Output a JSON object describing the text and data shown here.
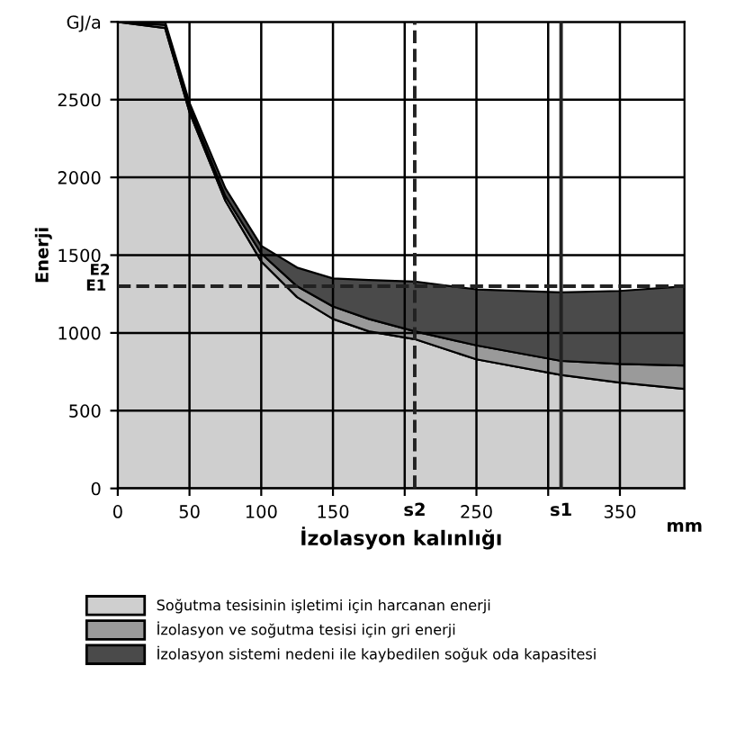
{
  "chart_data": {
    "type": "area",
    "stacked": true,
    "xlabel": "İzolasyon kalınlığı",
    "ylabel": "Enerji",
    "x": [
      0,
      33,
      50,
      75,
      100,
      125,
      150,
      175,
      207,
      250,
      309,
      350,
      395
    ],
    "series": [
      {
        "name": "Soğutma tesisinin işletimi için harcanan enerji",
        "color": "#cfcfcf",
        "values": [
          3000,
          2960,
          2420,
          1850,
          1460,
          1230,
          1090,
          1010,
          960,
          830,
          730,
          680,
          640
        ]
      },
      {
        "name": "İzolasyon ve soğutma tesisi için gri enerji",
        "color": "#9a9a9a",
        "values": [
          0,
          20,
          30,
          30,
          50,
          70,
          80,
          80,
          50,
          90,
          90,
          120,
          150
        ]
      },
      {
        "name": "İzolasyon sistemi nedeni ile kaybedilen soğuk oda kapasitesi",
        "color": "#4a4a4a",
        "values": [
          0,
          20,
          30,
          50,
          50,
          120,
          180,
          250,
          320,
          360,
          440,
          470,
          510
        ]
      }
    ],
    "xlim": [
      0,
      395
    ],
    "ylim": [
      0,
      3000
    ],
    "xticks": [
      0,
      50,
      100,
      150,
      {
        "value": 200,
        "label": null
      },
      250,
      {
        "value": 300,
        "label": null
      },
      350
    ],
    "yticks": [
      0,
      500,
      1000,
      1500,
      2000,
      2500,
      {
        "value": 3000,
        "label": "GJ/a"
      }
    ],
    "ref_lines": [
      {
        "axis": "x",
        "value": 207,
        "label": "s2",
        "line_style": "dashed",
        "color": "#222222"
      },
      {
        "axis": "x",
        "value": 309,
        "label": "s1",
        "line_style": "solid",
        "color": "#222222"
      },
      {
        "axis": "y",
        "value": 1300,
        "label": "E1",
        "line_style": "dashed",
        "color": "#222222"
      }
    ],
    "annotations": [
      {
        "text": "E2",
        "x": 0,
        "y": 1400
      },
      {
        "text": "mm",
        "x": 395,
        "y": 0
      }
    ],
    "grid": true,
    "legend": "bottom"
  }
}
